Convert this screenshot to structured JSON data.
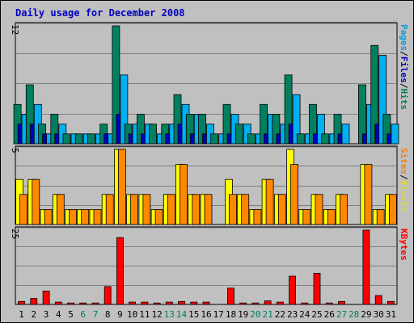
{
  "chart_data": {
    "type": "bar",
    "title": "Daily usage for December 2008",
    "categories": [
      "1",
      "2",
      "3",
      "4",
      "5",
      "6",
      "7",
      "8",
      "9",
      "10",
      "11",
      "12",
      "13",
      "14",
      "15",
      "16",
      "17",
      "18",
      "19",
      "20",
      "21",
      "22",
      "23",
      "24",
      "25",
      "26",
      "27",
      "28",
      "29",
      "30",
      "31"
    ],
    "weekend_days": [
      "6",
      "7",
      "13",
      "14",
      "20",
      "21",
      "27",
      "28"
    ],
    "panels": [
      {
        "id": "hits-files-pages",
        "ymax_label": "12",
        "ylim": [
          0,
          12
        ],
        "axis_label_parts": [
          {
            "text": "Pages",
            "color": "#00a0e0"
          },
          {
            "text": "/",
            "color": "#000000"
          },
          {
            "text": "Files",
            "color": "#0000c0"
          },
          {
            "text": "/",
            "color": "#000000"
          },
          {
            "text": "Hits",
            "color": "#008060"
          }
        ],
        "series": [
          {
            "name": "Hits",
            "color": "#008060",
            "values": [
              4,
              6,
              2,
              3,
              1,
              1,
              1,
              2,
              12,
              2,
              3,
              2,
              2,
              5,
              3,
              3,
              1,
              4,
              2,
              1,
              4,
              3,
              7,
              1,
              4,
              1,
              3,
              0,
              6,
              10,
              3
            ]
          },
          {
            "name": "Files",
            "color": "#0000c0",
            "values": [
              2,
              2,
              1,
              1,
              0,
              0,
              0,
              1,
              3,
              1,
              1,
              0,
              1,
              2,
              1,
              1,
              0,
              1,
              0,
              0,
              1,
              1,
              2,
              0,
              1,
              0,
              1,
              0,
              1,
              2,
              1
            ]
          },
          {
            "name": "Pages",
            "color": "#00b0f0",
            "values": [
              3,
              4,
              1,
              2,
              1,
              1,
              1,
              1,
              7,
              2,
              2,
              1,
              2,
              4,
              3,
              2,
              1,
              3,
              2,
              1,
              3,
              2,
              5,
              1,
              3,
              1,
              2,
              0,
              4,
              9,
              2
            ]
          }
        ]
      },
      {
        "id": "visits-sites",
        "ymax_label": "5",
        "ylim": [
          0,
          5
        ],
        "axis_label_parts": [
          {
            "text": "Sites",
            "color": "#ff8000"
          },
          {
            "text": "/",
            "color": "#000000"
          },
          {
            "text": "Visits",
            "color": "#e0e000"
          }
        ],
        "series": [
          {
            "name": "Visits",
            "color": "#ffff00",
            "values": [
              3,
              3,
              1,
              2,
              1,
              1,
              1,
              2,
              5,
              2,
              2,
              1,
              2,
              4,
              2,
              2,
              0,
              3,
              2,
              1,
              3,
              2,
              5,
              1,
              2,
              1,
              2,
              0,
              4,
              1,
              2
            ]
          },
          {
            "name": "Sites",
            "color": "#ff8800",
            "values": [
              2,
              3,
              1,
              2,
              1,
              1,
              1,
              2,
              5,
              2,
              2,
              1,
              2,
              4,
              2,
              2,
              0,
              2,
              2,
              1,
              3,
              2,
              4,
              1,
              2,
              1,
              2,
              0,
              4,
              1,
              2
            ]
          }
        ]
      },
      {
        "id": "kbytes",
        "ymax_label": "25",
        "ylim": [
          0,
          25
        ],
        "axis_label_parts": [
          {
            "text": "KBytes",
            "color": "#ff0000"
          }
        ],
        "series": [
          {
            "name": "KBytes",
            "color": "#ff0000",
            "values": [
              1,
              2,
              4.5,
              0.8,
              0.5,
              0.5,
              0.5,
              6,
              22.5,
              0.8,
              0.8,
              0.5,
              0.8,
              1,
              0.8,
              0.8,
              0,
              5.5,
              0.5,
              0.5,
              1.2,
              0.8,
              9.5,
              0.5,
              10.5,
              0.5,
              1,
              0,
              25,
              3,
              1
            ]
          }
        ]
      }
    ],
    "colors": {
      "background": "#c0c0c0",
      "title": "#0000c0",
      "weekday_label": "#000000",
      "weekend_label": "#008060",
      "gridline": "#808080",
      "border": "#000000"
    }
  }
}
